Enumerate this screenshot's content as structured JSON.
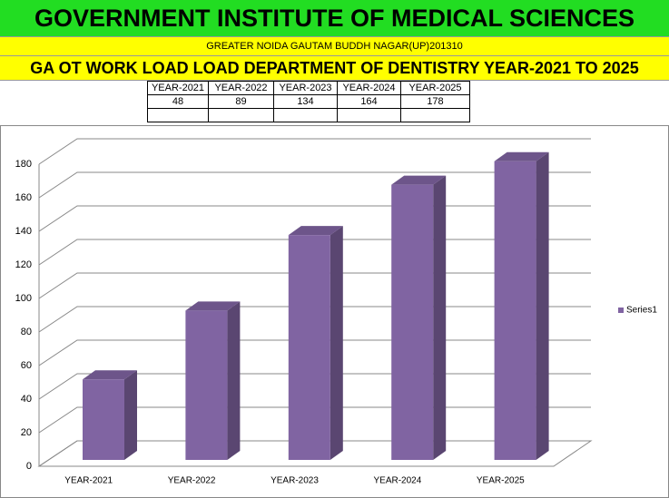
{
  "header": {
    "title": "GOVERNMENT INSTITUTE OF MEDICAL SCIENCES",
    "subtitle": "GREATER NOIDA GAUTAM BUDDH NAGAR(UP)201310",
    "heading": "GA OT WORK LOAD  LOAD DEPARTMENT OF DENTISTRY YEAR-2021 TO 2025"
  },
  "table": {
    "rows": [
      [
        "YEAR-2021",
        "YEAR-2022",
        "YEAR-2023",
        "YEAR-2024",
        "YEAR-2025"
      ],
      [
        "48",
        "89",
        "134",
        "164",
        "178"
      ]
    ]
  },
  "chart_data": {
    "type": "bar3d",
    "categories": [
      "YEAR-2021",
      "YEAR-2022",
      "YEAR-2023",
      "YEAR-2024",
      "YEAR-2025"
    ],
    "series": [
      {
        "name": "Series1",
        "color": "#8064a2",
        "values": [
          48,
          89,
          134,
          164,
          178
        ]
      }
    ],
    "ylim": [
      0,
      180
    ],
    "yticks": [
      0,
      20,
      40,
      60,
      80,
      100,
      120,
      140,
      160,
      180
    ],
    "grid": true,
    "legend": "right"
  }
}
